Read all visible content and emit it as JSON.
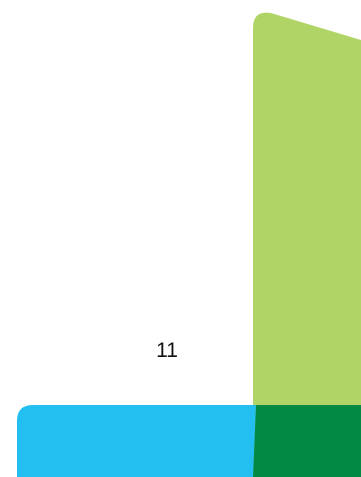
{
  "page": {
    "number": "11"
  },
  "colors": {
    "light_green": "#b1d467",
    "sky_blue": "#22bff0",
    "dark_green": "#028a45",
    "background": "#ffffff"
  }
}
